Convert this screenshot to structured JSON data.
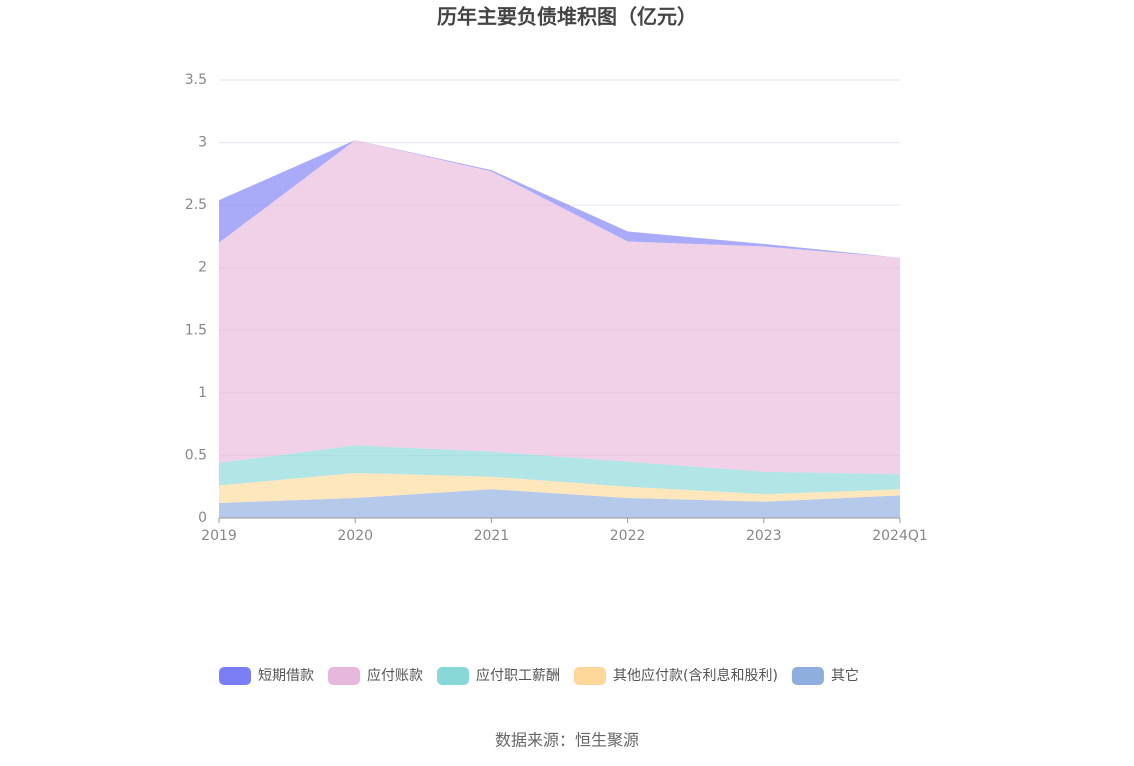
{
  "chart_data": {
    "type": "stacked-area",
    "title": "历年主要负债堆积图（亿元）",
    "categories": [
      "2019",
      "2020",
      "2021",
      "2022",
      "2023",
      "2024Q1"
    ],
    "series": [
      {
        "name": "短期借款",
        "color": "#7b7ef5",
        "values": [
          0.34,
          0,
          0.01,
          0.08,
          0.02,
          0
        ]
      },
      {
        "name": "应付账款",
        "color": "#e8b8dc",
        "values": [
          1.76,
          2.44,
          2.24,
          1.76,
          1.8,
          1.73
        ]
      },
      {
        "name": "应付职工薪酬",
        "color": "#88d8d8",
        "values": [
          0.18,
          0.22,
          0.2,
          0.2,
          0.18,
          0.12
        ]
      },
      {
        "name": "其他应付款(含利息和股利)",
        "color": "#fdd89a",
        "values": [
          0.14,
          0.2,
          0.1,
          0.09,
          0.06,
          0.05
        ]
      },
      {
        "name": "其它",
        "color": "#8eaede",
        "values": [
          0.12,
          0.16,
          0.23,
          0.16,
          0.13,
          0.18
        ]
      }
    ],
    "ylim": [
      0,
      3.5
    ],
    "yticks": [
      0,
      0.5,
      1,
      1.5,
      2,
      2.5,
      3,
      3.5
    ],
    "grid": true
  },
  "source": "数据来源：恒生聚源"
}
